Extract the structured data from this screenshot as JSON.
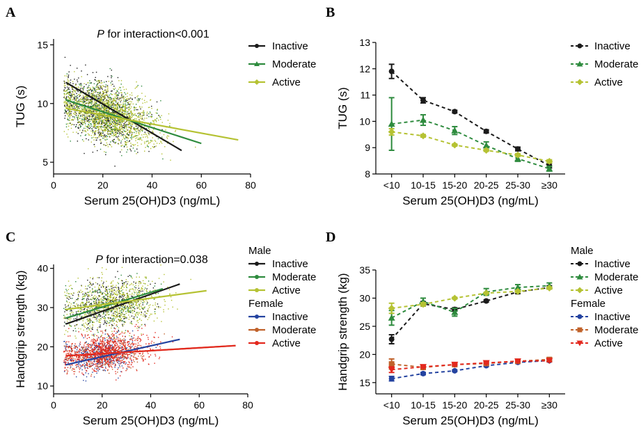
{
  "figure": {
    "panels": [
      "A",
      "B",
      "C",
      "D"
    ]
  },
  "colors": {
    "inactive": "#1a1a1a",
    "moderate": "#2e8b3e",
    "active": "#b5c233",
    "female_inactive": "#2443a0",
    "female_moderate": "#c0612a",
    "female_active": "#e3281e"
  },
  "chart_data": [
    {
      "panel": "A",
      "type": "scatter",
      "title": "",
      "annotation": {
        "italic": "P",
        "text": " for interaction<0.001"
      },
      "xlabel": "Serum 25(OH)D3 (ng/mL)",
      "ylabel": "TUG (s)",
      "xlim": [
        0,
        80
      ],
      "ylim": [
        4,
        15.5
      ],
      "xticks": [
        0,
        20,
        40,
        60,
        80
      ],
      "yticks": [
        5,
        10,
        15
      ],
      "legend_position": "right",
      "legend": [
        "Inactive",
        "Moderate",
        "Active"
      ],
      "series": [
        {
          "name": "Inactive",
          "color_key": "inactive",
          "fit": [
            [
              5,
              11.8
            ],
            [
              52,
              6.0
            ]
          ],
          "cloud": {
            "x_center": 19,
            "x_spread": 8,
            "y_center": 9.4,
            "y_spread": 1.3,
            "n": 900
          }
        },
        {
          "name": "Moderate",
          "color_key": "moderate",
          "fit": [
            [
              5,
              10.3
            ],
            [
              60,
              6.6
            ]
          ],
          "cloud": {
            "x_center": 21,
            "x_spread": 9,
            "y_center": 9.2,
            "y_spread": 1.2,
            "n": 500
          }
        },
        {
          "name": "Active",
          "color_key": "active",
          "fit": [
            [
              5,
              9.6
            ],
            [
              75,
              6.9
            ]
          ],
          "cloud": {
            "x_center": 22,
            "x_spread": 10,
            "y_center": 9.1,
            "y_spread": 1.1,
            "n": 1500
          }
        }
      ]
    },
    {
      "panel": "B",
      "type": "line",
      "title": "",
      "xlabel": "Serum 25(OH)D3 (ng/mL)",
      "ylabel": "TUG (s)",
      "categories": [
        "<10",
        "10-15",
        "15-20",
        "20-25",
        "25-30",
        "≥30"
      ],
      "ylim": [
        8,
        13
      ],
      "yticks": [
        8,
        9,
        10,
        11,
        12,
        13
      ],
      "legend_position": "right",
      "series": [
        {
          "name": "Inactive",
          "color_key": "inactive",
          "marker": "circle",
          "values": [
            11.9,
            10.8,
            10.37,
            9.62,
            8.95,
            8.32
          ],
          "err": [
            0.27,
            0.1,
            0.05,
            0.06,
            0.07,
            0.09
          ]
        },
        {
          "name": "Moderate",
          "color_key": "moderate",
          "marker": "triangle",
          "values": [
            9.9,
            10.05,
            9.65,
            9.08,
            8.58,
            8.2
          ],
          "err": [
            1.0,
            0.2,
            0.15,
            0.14,
            0.1,
            0.09
          ]
        },
        {
          "name": "Active",
          "color_key": "active",
          "marker": "diamond",
          "values": [
            9.6,
            9.45,
            9.1,
            8.9,
            8.72,
            8.48
          ],
          "err": [
            0.12,
            0.05,
            0.04,
            0.04,
            0.05,
            0.06
          ]
        }
      ]
    },
    {
      "panel": "C",
      "type": "scatter",
      "title": "",
      "annotation": {
        "italic": "P",
        "text": " for interaction=0.038"
      },
      "xlabel": "Serum 25(OH)D3 (ng/mL)",
      "ylabel": "Handgrip strength (kg)",
      "xlim": [
        0,
        80
      ],
      "ylim": [
        8,
        41
      ],
      "xticks": [
        0,
        20,
        40,
        60,
        80
      ],
      "yticks": [
        10,
        20,
        30,
        40
      ],
      "legend_position": "right",
      "legend_groups": [
        {
          "title": "Male",
          "entries": [
            "Inactive",
            "Moderate",
            "Active"
          ]
        },
        {
          "title": "Female",
          "entries": [
            "Inactive",
            "Moderate",
            "Active"
          ]
        }
      ],
      "series": [
        {
          "name": "Male Inactive",
          "color_key": "inactive",
          "fit": [
            [
              5,
              25.8
            ],
            [
              52,
              36.0
            ]
          ],
          "cloud": {
            "x_center": 22,
            "x_spread": 9,
            "y_center": 31,
            "y_spread": 3.2,
            "n": 450
          }
        },
        {
          "name": "Male Moderate",
          "color_key": "moderate",
          "fit": [
            [
              5,
              27.3
            ],
            [
              45,
              34.8
            ]
          ],
          "cloud": {
            "x_center": 22,
            "x_spread": 9,
            "y_center": 31,
            "y_spread": 3.2,
            "n": 250
          }
        },
        {
          "name": "Male Active",
          "color_key": "active",
          "fit": [
            [
              5,
              29.5
            ],
            [
              63,
              34.3
            ]
          ],
          "cloud": {
            "x_center": 24,
            "x_spread": 10,
            "y_center": 31,
            "y_spread": 3.4,
            "n": 800
          }
        },
        {
          "name": "Female Inactive",
          "color_key": "female_inactive",
          "fit": [
            [
              5,
              15.4
            ],
            [
              52,
              21.9
            ]
          ],
          "cloud": {
            "x_center": 18,
            "x_spread": 7,
            "y_center": 18,
            "y_spread": 2.2,
            "n": 450
          }
        },
        {
          "name": "Female Moderate",
          "color_key": "female_moderate",
          "fit": [
            [
              5,
              17.7
            ],
            [
              75,
              20.3
            ]
          ],
          "cloud": {
            "x_center": 20,
            "x_spread": 8,
            "y_center": 18.5,
            "y_spread": 2.2,
            "n": 350
          }
        },
        {
          "name": "Female Active",
          "color_key": "female_active",
          "fit": [
            [
              5,
              17.7
            ],
            [
              75,
              20.3
            ]
          ],
          "cloud": {
            "x_center": 21,
            "x_spread": 9,
            "y_center": 18.6,
            "y_spread": 2.3,
            "n": 900
          }
        }
      ]
    },
    {
      "panel": "D",
      "type": "line",
      "title": "",
      "xlabel": "Serum 25(OH)D3 (ng/mL)",
      "ylabel": "Handgrip strength (kg)",
      "categories": [
        "<10",
        "10-15",
        "15-20",
        "20-25",
        "25-30",
        "≥30"
      ],
      "ylim": [
        13,
        35
      ],
      "yticks": [
        15,
        20,
        25,
        30,
        35
      ],
      "legend_position": "right",
      "legend_groups": [
        {
          "title": "Male",
          "entries": [
            "Inactive",
            "Moderate",
            "Active"
          ]
        },
        {
          "title": "Female",
          "entries": [
            "Inactive",
            "Moderate",
            "Active"
          ]
        }
      ],
      "series": [
        {
          "name": "Male Inactive",
          "color_key": "inactive",
          "marker": "circle",
          "values": [
            22.7,
            29.0,
            28.0,
            29.5,
            31.1,
            31.9
          ],
          "err": [
            0.8,
            0.4,
            0.3,
            0.2,
            0.3,
            0.3
          ]
        },
        {
          "name": "Male Moderate",
          "color_key": "moderate",
          "marker": "triangle",
          "values": [
            26.5,
            29.4,
            27.5,
            31.1,
            31.9,
            32.2
          ],
          "err": [
            1.3,
            0.6,
            0.7,
            0.6,
            0.5,
            0.5
          ]
        },
        {
          "name": "Male Active",
          "color_key": "active",
          "marker": "diamond",
          "values": [
            28.2,
            28.9,
            30.0,
            30.9,
            31.2,
            31.8
          ],
          "err": [
            0.9,
            0.3,
            0.15,
            0.15,
            0.2,
            0.2
          ]
        },
        {
          "name": "Female Inactive",
          "color_key": "female_inactive",
          "marker": "circle",
          "values": [
            15.7,
            16.6,
            17.1,
            18.0,
            18.6,
            18.9
          ],
          "err": [
            0.4,
            0.2,
            0.15,
            0.15,
            0.2,
            0.2
          ]
        },
        {
          "name": "Female Moderate",
          "color_key": "female_moderate",
          "marker": "square",
          "values": [
            18.3,
            17.7,
            18.2,
            18.4,
            18.8,
            19.1
          ],
          "err": [
            0.9,
            0.3,
            0.2,
            0.2,
            0.2,
            0.3
          ]
        },
        {
          "name": "Female Active",
          "color_key": "female_active",
          "marker": "triangle-down",
          "values": [
            17.3,
            17.8,
            18.2,
            18.5,
            18.8,
            18.9
          ],
          "err": [
            0.5,
            0.2,
            0.15,
            0.15,
            0.15,
            0.2
          ]
        }
      ]
    }
  ]
}
